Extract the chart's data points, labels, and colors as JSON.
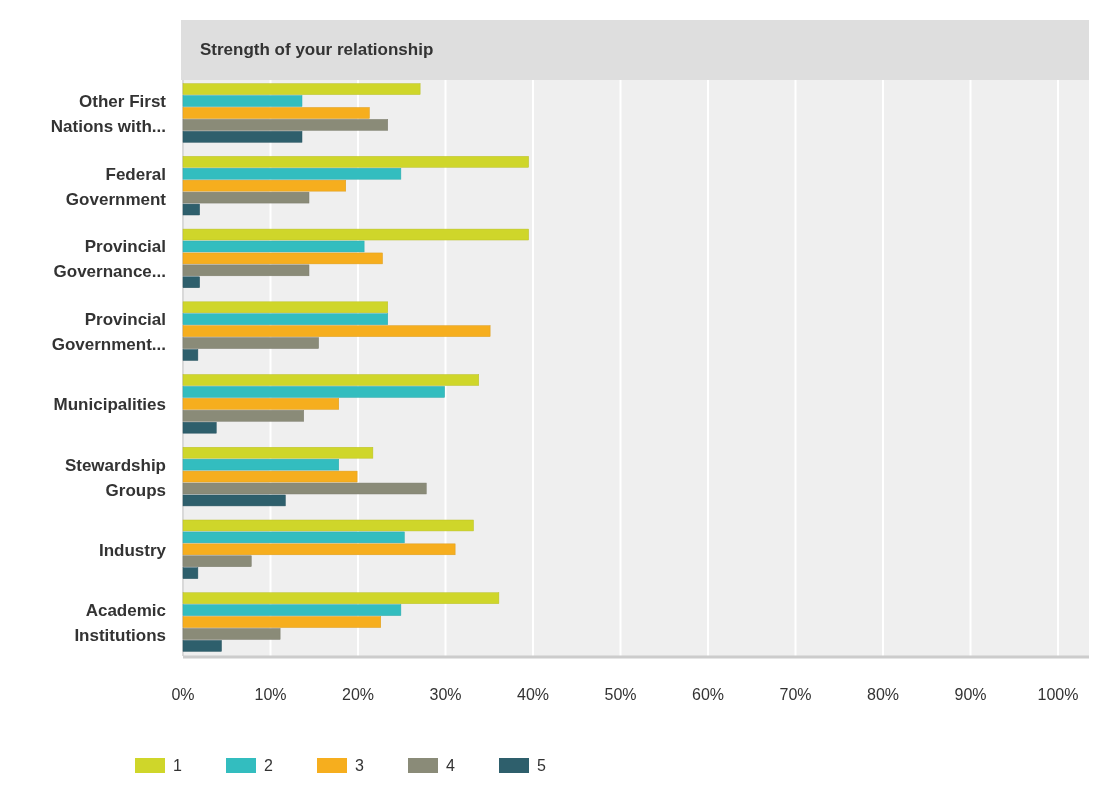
{
  "chart_data": {
    "type": "bar",
    "orientation": "horizontal",
    "title": "Strength of your relationship",
    "categories": [
      "Other First Nations with...",
      "Federal Government",
      "Provincial Governance...",
      "Provincial Government...",
      "Municipalities",
      "Stewardship Groups",
      "Industry",
      "Academic Institutions"
    ],
    "series": [
      {
        "name": "1",
        "color": "#cfd62a",
        "values": [
          27.1,
          39.5,
          39.5,
          23.4,
          33.8,
          21.7,
          33.2,
          36.1
        ]
      },
      {
        "name": "2",
        "color": "#33bdbf",
        "values": [
          13.6,
          24.9,
          20.7,
          23.4,
          29.9,
          17.8,
          25.3,
          24.9
        ]
      },
      {
        "name": "3",
        "color": "#f6ae1e",
        "values": [
          21.3,
          18.6,
          22.8,
          35.1,
          17.8,
          19.9,
          31.1,
          22.6
        ]
      },
      {
        "name": "4",
        "color": "#8a8b78",
        "values": [
          23.4,
          14.4,
          14.4,
          15.5,
          13.8,
          27.8,
          7.8,
          11.1
        ]
      },
      {
        "name": "5",
        "color": "#2e5f6c",
        "values": [
          13.6,
          1.9,
          1.9,
          1.7,
          3.8,
          11.7,
          1.7,
          4.4
        ]
      }
    ],
    "xlim": [
      0,
      100
    ],
    "xticks": [
      {
        "value": 0,
        "label": "0%"
      },
      {
        "value": 10,
        "label": "10%"
      },
      {
        "value": 20,
        "label": "20%"
      },
      {
        "value": 30,
        "label": "30%"
      },
      {
        "value": 40,
        "label": "40%"
      },
      {
        "value": 50,
        "label": "50%"
      },
      {
        "value": 60,
        "label": "60%"
      },
      {
        "value": 70,
        "label": "70%"
      },
      {
        "value": 80,
        "label": "80%"
      },
      {
        "value": 90,
        "label": "90%"
      },
      {
        "value": 100,
        "label": "100%"
      }
    ],
    "grid": "x",
    "legend": "bottom"
  }
}
